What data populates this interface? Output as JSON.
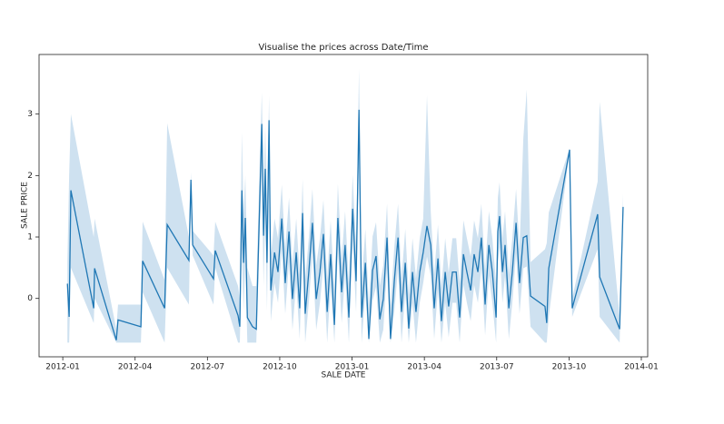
{
  "chart_data": {
    "type": "line",
    "title": "Visualise the prices across Date/Time",
    "xlabel": "SALE DATE",
    "ylabel": "SALE PRICE",
    "xlim": [
      2011.918,
      2014.022
    ],
    "ylim": [
      -0.95,
      3.97
    ],
    "xticks": [
      {
        "value": 2012.0,
        "label": "2012-01"
      },
      {
        "value": 2012.25,
        "label": "2012-04"
      },
      {
        "value": 2012.5,
        "label": "2012-07"
      },
      {
        "value": 2012.75,
        "label": "2012-10"
      },
      {
        "value": 2013.0,
        "label": "2013-01"
      },
      {
        "value": 2013.25,
        "label": "2013-04"
      },
      {
        "value": 2013.5,
        "label": "2013-07"
      },
      {
        "value": 2013.75,
        "label": "2013-10"
      },
      {
        "value": 2014.0,
        "label": "2014-01"
      }
    ],
    "yticks": [
      0,
      1,
      2,
      3
    ],
    "x": [
      2012.016,
      2012.022,
      2012.028,
      2012.107,
      2012.11,
      2012.185,
      2012.191,
      2012.27,
      2012.276,
      2012.352,
      2012.361,
      2012.436,
      2012.443,
      2012.449,
      2012.521,
      2012.527,
      2012.606,
      2012.612,
      2012.619,
      2012.625,
      2012.631,
      2012.638,
      2012.656,
      2012.669,
      2012.688,
      2012.694,
      2012.7,
      2012.706,
      2012.713,
      2012.719,
      2012.732,
      2012.744,
      2012.757,
      2012.769,
      2012.782,
      2012.794,
      2012.807,
      2012.819,
      2012.829,
      2012.838,
      2012.851,
      2012.863,
      2012.876,
      2012.889,
      2012.901,
      2012.914,
      2012.926,
      2012.939,
      2012.951,
      2012.964,
      2012.976,
      2012.989,
      2013.002,
      2013.014,
      2013.024,
      2013.033,
      2013.046,
      2013.058,
      2013.071,
      2013.083,
      2013.096,
      2013.108,
      2013.121,
      2013.133,
      2013.146,
      2013.159,
      2013.171,
      2013.184,
      2013.196,
      2013.209,
      2013.221,
      2013.234,
      2013.246,
      2013.259,
      2013.272,
      2013.284,
      2013.297,
      2013.309,
      2013.322,
      2013.334,
      2013.347,
      2013.36,
      2013.372,
      2013.385,
      2013.397,
      2013.41,
      2013.422,
      2013.435,
      2013.447,
      2013.46,
      2013.473,
      2013.485,
      2013.498,
      2013.504,
      2013.51,
      2013.52,
      2013.529,
      2013.542,
      2013.554,
      2013.567,
      2013.579,
      2013.592,
      2013.604,
      2013.617,
      2013.667,
      2013.673,
      2013.68,
      2013.752,
      2013.761,
      2013.849,
      2013.856,
      2013.925,
      2013.937
    ],
    "series": [
      {
        "color": "#1f77b4",
        "band_color": "#a6c8e4",
        "values": [
          0.24,
          -0.3,
          1.76,
          -0.16,
          0.49,
          -0.68,
          -0.35,
          -0.46,
          0.61,
          -0.16,
          1.2,
          0.62,
          1.93,
          0.87,
          0.32,
          0.78,
          -0.28,
          -0.46,
          1.76,
          0.58,
          1.31,
          -0.31,
          -0.46,
          -0.5,
          2.84,
          1.02,
          2.11,
          0.58,
          2.9,
          0.13,
          0.75,
          0.43,
          1.3,
          0.25,
          1.09,
          -0.01,
          0.75,
          -0.16,
          1.39,
          -0.25,
          0.46,
          1.23,
          -0.01,
          0.43,
          1.05,
          -0.22,
          0.72,
          -0.43,
          1.31,
          0.1,
          0.87,
          -0.31,
          1.46,
          0.28,
          3.07,
          -0.31,
          0.58,
          -0.66,
          0.46,
          0.69,
          -0.34,
          -0.01,
          0.99,
          -0.66,
          0.28,
          0.99,
          -0.22,
          0.58,
          -0.49,
          0.43,
          -0.22,
          0.43,
          0.75,
          1.18,
          0.87,
          -0.16,
          0.65,
          -0.37,
          0.43,
          -0.13,
          0.43,
          0.43,
          -0.31,
          0.72,
          0.43,
          0.13,
          0.72,
          0.43,
          0.99,
          -0.1,
          0.87,
          0.43,
          -0.31,
          1.09,
          1.34,
          0.43,
          0.87,
          -0.16,
          0.43,
          1.23,
          0.25,
          0.99,
          1.02,
          0.04,
          -0.13,
          -0.4,
          0.49,
          2.42,
          -0.16,
          1.37,
          0.35,
          -0.5,
          1.49
        ],
        "ci_lower": [
          -0.72,
          -0.72,
          0.5,
          -0.4,
          0.0,
          -0.72,
          -0.72,
          -0.72,
          0.1,
          -0.72,
          0.5,
          -0.1,
          1.8,
          0.7,
          -0.1,
          0.5,
          -0.72,
          -0.72,
          0.8,
          -0.2,
          0.6,
          -0.72,
          -0.72,
          -0.72,
          2.2,
          0.2,
          1.4,
          -0.2,
          2.4,
          -0.37,
          0.25,
          -0.07,
          0.8,
          -0.25,
          0.59,
          -0.51,
          0.25,
          -0.66,
          0.89,
          -0.72,
          -0.04,
          0.73,
          -0.51,
          -0.07,
          0.55,
          -0.72,
          0.22,
          -0.72,
          0.81,
          -0.4,
          0.37,
          -0.72,
          0.96,
          -0.22,
          2.4,
          -0.72,
          0.08,
          -0.72,
          -0.04,
          0.19,
          -0.72,
          -0.51,
          0.49,
          -0.72,
          -0.22,
          0.49,
          -0.72,
          0.08,
          -0.72,
          -0.07,
          -0.72,
          -0.07,
          0.25,
          0.68,
          0.37,
          -0.66,
          0.15,
          -0.72,
          -0.07,
          -0.63,
          -0.07,
          -0.07,
          -0.72,
          0.22,
          -0.07,
          -0.37,
          0.22,
          -0.07,
          0.49,
          -0.6,
          0.37,
          -0.07,
          -0.72,
          0.59,
          0.84,
          -0.07,
          0.37,
          -0.66,
          -0.07,
          0.73,
          -0.25,
          0.49,
          0.52,
          -0.46,
          -0.72,
          -0.72,
          -0.3,
          2.4,
          -0.3,
          0.8,
          -0.3,
          -0.72,
          1.4
        ],
        "ci_upper": [
          0.6,
          2.0,
          3.0,
          1.0,
          1.3,
          -0.5,
          -0.1,
          -0.1,
          1.25,
          0.3,
          2.85,
          1.0,
          2.05,
          1.1,
          0.7,
          1.25,
          0.2,
          0.0,
          2.7,
          1.4,
          2.0,
          0.5,
          0.2,
          0.2,
          3.35,
          1.8,
          2.8,
          1.3,
          3.3,
          0.68,
          1.3,
          0.98,
          1.85,
          0.8,
          1.64,
          0.54,
          1.3,
          0.39,
          1.94,
          0.3,
          1.01,
          1.78,
          0.54,
          0.98,
          1.6,
          0.33,
          1.27,
          0.12,
          1.86,
          0.65,
          1.42,
          0.24,
          2.01,
          0.83,
          3.74,
          0.24,
          1.13,
          -0.11,
          1.01,
          1.24,
          0.21,
          0.54,
          1.54,
          -0.11,
          0.83,
          1.54,
          0.33,
          1.13,
          0.06,
          0.98,
          0.33,
          0.98,
          1.3,
          3.3,
          1.42,
          0.39,
          1.2,
          0.18,
          0.98,
          0.42,
          0.98,
          0.98,
          0.24,
          1.27,
          0.98,
          0.68,
          1.27,
          0.98,
          1.54,
          0.45,
          1.42,
          0.98,
          0.24,
          1.64,
          1.89,
          0.98,
          1.42,
          0.39,
          0.98,
          1.78,
          0.8,
          2.6,
          3.4,
          0.59,
          0.8,
          0.9,
          1.4,
          2.44,
          0.0,
          1.9,
          3.2,
          -0.3,
          1.7
        ]
      }
    ]
  }
}
